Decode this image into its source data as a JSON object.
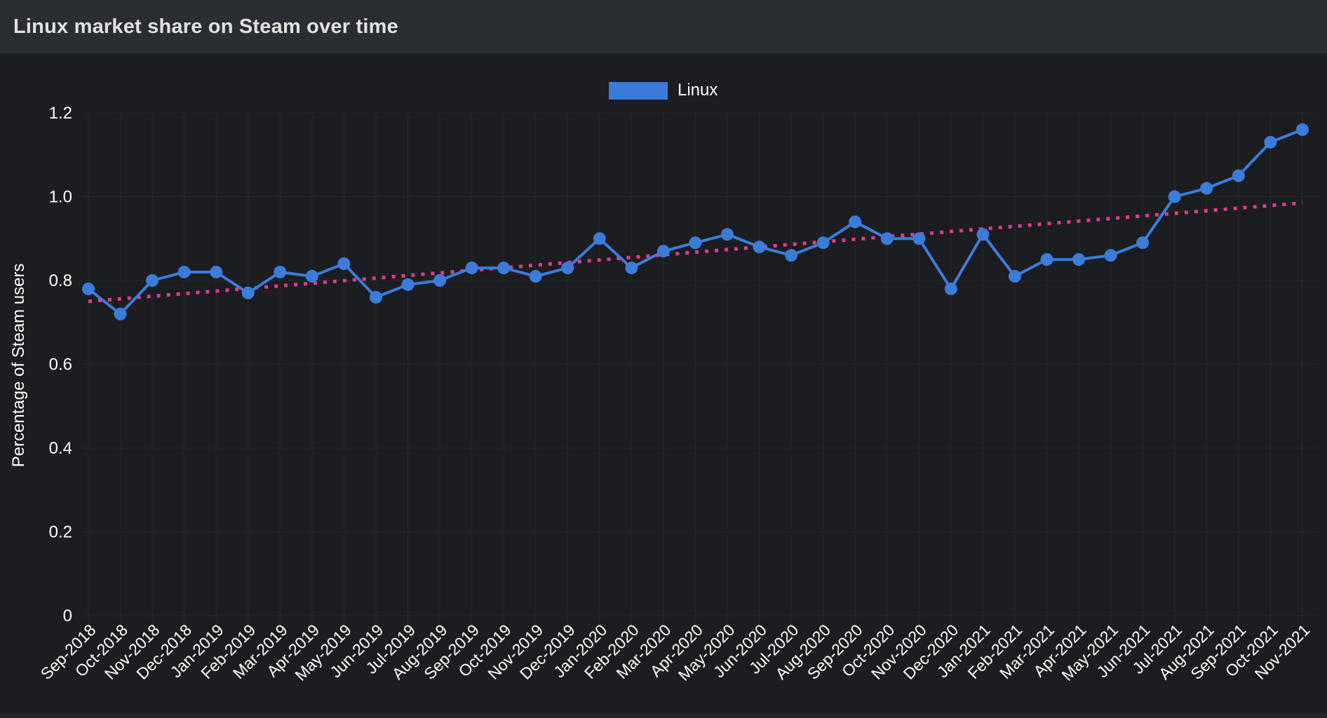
{
  "header": {
    "title": "Linux market share on Steam over time"
  },
  "legend": {
    "items": [
      {
        "label": "Linux",
        "color": "#3b7cdb"
      }
    ]
  },
  "chart_data": {
    "type": "line",
    "title": "Linux market share on Steam over time",
    "xlabel": "",
    "ylabel": "Percentage of Steam users",
    "ylim": [
      0,
      1.2
    ],
    "y_ticks": [
      "0",
      "0.2",
      "0.4",
      "0.6",
      "0.8",
      "1.0",
      "1.2"
    ],
    "grid": true,
    "legend_position": "top",
    "categories": [
      "Sep-2018",
      "Oct-2018",
      "Nov-2018",
      "Dec-2018",
      "Jan-2019",
      "Feb-2019",
      "Mar-2019",
      "Apr-2019",
      "May-2019",
      "Jun-2019",
      "Jul-2019",
      "Aug-2019",
      "Sep-2019",
      "Oct-2019",
      "Nov-2019",
      "Dec-2019",
      "Jan-2020",
      "Feb-2020",
      "Mar-2020",
      "Apr-2020",
      "May-2020",
      "Jun-2020",
      "Jul-2020",
      "Aug-2020",
      "Sep-2020",
      "Oct-2020",
      "Nov-2020",
      "Dec-2020",
      "Jan-2021",
      "Feb-2021",
      "Mar-2021",
      "Apr-2021",
      "May-2021",
      "Jun-2021",
      "Jul-2021",
      "Aug-2021",
      "Sep-2021",
      "Oct-2021",
      "Nov-2021"
    ],
    "series": [
      {
        "name": "Linux",
        "color": "#3b7cdb",
        "values": [
          0.78,
          0.72,
          0.8,
          0.82,
          0.82,
          0.77,
          0.82,
          0.81,
          0.84,
          0.76,
          0.79,
          0.8,
          0.83,
          0.83,
          0.81,
          0.83,
          0.9,
          0.83,
          0.87,
          0.89,
          0.91,
          0.88,
          0.86,
          0.89,
          0.94,
          0.9,
          0.9,
          0.78,
          0.91,
          0.81,
          0.85,
          0.85,
          0.86,
          0.89,
          1.0,
          1.02,
          1.05,
          1.13,
          1.16
        ]
      }
    ],
    "trendline": {
      "type": "linear",
      "from": 0.75,
      "to": 0.985,
      "style": "dotted",
      "color": "#e03a8e"
    }
  },
  "theme": {
    "header_bg": "#2a2e33",
    "page_bg": "#1b1d21",
    "grid_color": "#26282c",
    "text_color": "#ffffff",
    "title_color": "#e3e2e0",
    "footer_bg": "#242629"
  }
}
